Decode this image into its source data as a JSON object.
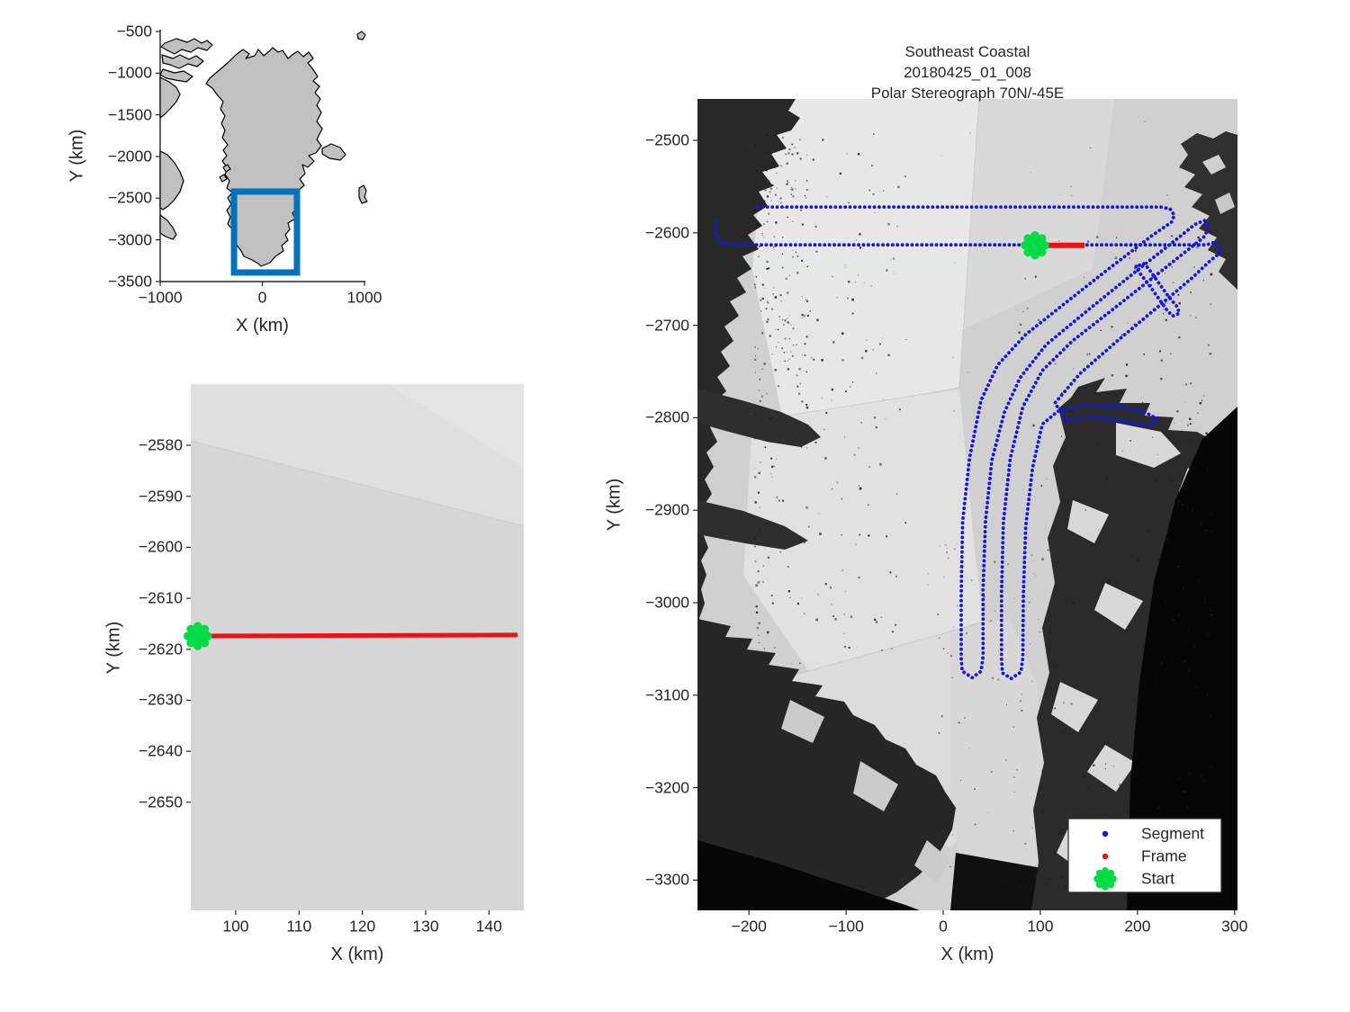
{
  "colors": {
    "segment_blue": "#1414E6",
    "frame_red": "#EC1212",
    "start_green": "#00DC46",
    "region_box_blue": "#0072BD",
    "land_gray": "#C0C0C0",
    "text": "#262626"
  },
  "chart_data": [
    {
      "id": "overview_map",
      "type": "line",
      "description": "Greenland overview inset with blue rectangle marking the Southeast Coastal survey region",
      "xlabel": "X (km)",
      "ylabel": "Y (km)",
      "x_ticks": [
        -1000,
        0,
        1000
      ],
      "y_ticks": [
        -500,
        -1000,
        -1500,
        -2000,
        -2500,
        -3000,
        -3500
      ],
      "xlim": [
        -1000,
        1000
      ],
      "ylim": [
        -3500.6,
        -478.4
      ],
      "grid": false,
      "series": [
        {
          "name": "region-box",
          "style": "rectangle",
          "color": "#0072BD",
          "x": [
            -277,
            339
          ],
          "y": [
            -3392,
            -2421
          ]
        }
      ]
    },
    {
      "id": "frame_zoom",
      "type": "line",
      "description": "Zoom on current frame: red frame line with green start marker",
      "xlabel": "X (km)",
      "ylabel": "Y (km)",
      "x_ticks": [
        100,
        110,
        120,
        130,
        140
      ],
      "y_ticks": [
        -2580,
        -2590,
        -2600,
        -2610,
        -2620,
        -2630,
        -2640,
        -2650
      ],
      "xlim": [
        92.9,
        145.5
      ],
      "ylim": [
        -2671.2,
        -2568.0
      ],
      "grid": false,
      "series": [
        {
          "name": "Frame",
          "style": "line",
          "color": "#EC1212",
          "x": [
            94,
            144.5
          ],
          "y": [
            -2617.4,
            -2617.2
          ]
        },
        {
          "name": "Start",
          "style": "marker",
          "color": "#00DC46",
          "x": [
            94
          ],
          "y": [
            -2617.4
          ]
        }
      ]
    },
    {
      "id": "main_map",
      "type": "scatter",
      "title_lines": [
        "Southeast Coastal",
        "20180425_01_008",
        "Polar Stereograph 70N/-45E"
      ],
      "xlabel": "X (km)",
      "ylabel": "Y (km)",
      "x_ticks": [
        -200,
        -100,
        0,
        100,
        200,
        300
      ],
      "y_ticks": [
        -2500,
        -2600,
        -2700,
        -2800,
        -2900,
        -3000,
        -3100,
        -3200,
        -3300
      ],
      "xlim": [
        -253,
        303
      ],
      "ylim": [
        -3332.7,
        -2455.2
      ],
      "grid": false,
      "legend": {
        "position": "bottom-right",
        "items": [
          {
            "label": "Segment",
            "marker": "dot",
            "color": "#1414E6"
          },
          {
            "label": "Frame",
            "marker": "dot",
            "color": "#EC1212"
          },
          {
            "label": "Start",
            "marker": "asterisk",
            "color": "#00DC46"
          }
        ]
      },
      "series": [
        {
          "name": "Segment",
          "style": "dotted",
          "color": "#1414E6",
          "points": [
            [
              -191,
              -2572
            ],
            [
              224,
              -2572
            ],
            [
              233.5,
              -2574
            ],
            [
              238,
              -2581
            ],
            [
              235,
              -2588.5
            ],
            [
              215,
              -2603
            ],
            [
              169,
              -2640
            ],
            [
              122,
              -2679
            ],
            [
              85,
              -2710
            ],
            [
              56,
              -2743
            ],
            [
              39,
              -2781
            ],
            [
              27,
              -2844
            ],
            [
              20,
              -2912
            ],
            [
              18.5,
              -2990
            ],
            [
              18.5,
              -3060
            ],
            [
              19.5,
              -3074
            ],
            [
              30,
              -3081
            ],
            [
              39,
              -3074
            ],
            [
              41,
              -3058
            ],
            [
              41,
              -2985
            ],
            [
              43.5,
              -2912
            ],
            [
              50,
              -2846
            ],
            [
              63,
              -2794
            ],
            [
              79,
              -2757
            ],
            [
              106,
              -2721
            ],
            [
              152,
              -2681
            ],
            [
              198,
              -2642
            ],
            [
              245,
              -2603
            ],
            [
              259,
              -2591
            ],
            [
              269,
              -2586.5
            ],
            [
              274,
              -2594
            ],
            [
              268,
              -2605
            ],
            [
              226,
              -2640
            ],
            [
              178,
              -2680
            ],
            [
              133,
              -2717
            ],
            [
              102,
              -2749
            ],
            [
              82,
              -2788
            ],
            [
              69,
              -2844
            ],
            [
              62,
              -2912
            ],
            [
              60,
              -2990
            ],
            [
              60,
              -3061
            ],
            [
              61,
              -3076
            ],
            [
              70,
              -3082
            ],
            [
              80,
              -3075
            ],
            [
              82,
              -3059
            ],
            [
              82.5,
              -2990
            ],
            [
              85,
              -2917
            ],
            [
              92,
              -2854
            ],
            [
              102,
              -2807
            ],
            [
              118,
              -2793
            ],
            [
              146,
              -2786
            ],
            [
              183,
              -2788
            ],
            [
              208,
              -2794
            ],
            [
              220,
              -2801
            ],
            [
              215,
              -2809
            ],
            [
              192,
              -2805
            ],
            [
              155,
              -2799
            ],
            [
              127,
              -2803
            ],
            [
              115,
              -2784
            ],
            [
              141,
              -2752
            ],
            [
              178,
              -2718
            ],
            [
              220,
              -2681
            ],
            [
              257,
              -2648
            ],
            [
              275,
              -2630
            ],
            [
              283,
              -2623.5
            ],
            [
              286,
              -2616
            ],
            [
              280,
              -2610
            ],
            [
              271,
              -2613
            ],
            [
              146,
              -2613
            ],
            [
              94.5,
              -2613
            ],
            [
              -224,
              -2613
            ],
            [
              -232,
              -2607
            ],
            [
              -235,
              -2599
            ],
            [
              -234,
              -2590
            ],
            [
              -230,
              -2585.5
            ]
          ]
        },
        {
          "name": "Segment-spur",
          "style": "dotted",
          "color": "#1414E6",
          "points": [
            [
              202,
              -2635
            ],
            [
              206,
              -2633
            ],
            [
              211,
              -2638
            ],
            [
              232,
              -2669
            ],
            [
              241,
              -2680
            ],
            [
              243,
              -2687
            ],
            [
              236,
              -2690
            ],
            [
              230,
              -2683
            ],
            [
              211,
              -2655
            ],
            [
              202,
              -2643
            ],
            [
              198,
              -2637
            ],
            [
              201,
              -2634
            ]
          ]
        },
        {
          "name": "Frame",
          "style": "line",
          "color": "#EC1212",
          "x": [
            94.5,
            145.5
          ],
          "y": [
            -2613.5,
            -2613.5
          ]
        },
        {
          "name": "Start",
          "style": "marker",
          "color": "#00DC46",
          "x": [
            94.5
          ],
          "y": [
            -2613.5
          ]
        }
      ]
    }
  ]
}
